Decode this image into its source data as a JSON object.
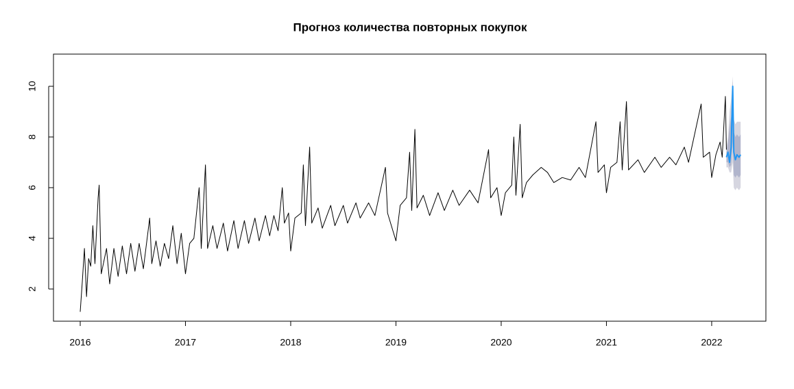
{
  "chart_data": {
    "type": "line",
    "title": "Прогноз количества повторных покупок",
    "xlim": [
      2015.746,
      2022.515
    ],
    "ylim": [
      0.73,
      11.27
    ],
    "xticks": [
      2016,
      2017,
      2018,
      2019,
      2020,
      2021,
      2022
    ],
    "yticks": [
      2,
      4,
      6,
      8,
      10
    ],
    "series": [
      {
        "color": "#000000",
        "x": [
          2016.0,
          2016.02,
          2016.04,
          2016.06,
          2016.08,
          2016.1,
          2016.12,
          2016.14,
          2016.17,
          2016.18,
          2016.2,
          2016.25,
          2016.28,
          2016.32,
          2016.36,
          2016.4,
          2016.44,
          2016.48,
          2016.52,
          2016.56,
          2016.6,
          2016.66,
          2016.68,
          2016.72,
          2016.76,
          2016.8,
          2016.84,
          2016.88,
          2016.92,
          2016.96,
          2017.0,
          2017.04,
          2017.08,
          2017.13,
          2017.15,
          2017.19,
          2017.21,
          2017.26,
          2017.3,
          2017.36,
          2017.4,
          2017.46,
          2017.5,
          2017.56,
          2017.6,
          2017.66,
          2017.7,
          2017.76,
          2017.8,
          2017.84,
          2017.88,
          2017.92,
          2017.94,
          2017.98,
          2018.0,
          2018.04,
          2018.1,
          2018.12,
          2018.14,
          2018.18,
          2018.2,
          2018.26,
          2018.3,
          2018.38,
          2018.42,
          2018.5,
          2018.54,
          2018.62,
          2018.66,
          2018.74,
          2018.8,
          2018.9,
          2018.92,
          2019.0,
          2019.04,
          2019.1,
          2019.13,
          2019.15,
          2019.18,
          2019.2,
          2019.26,
          2019.32,
          2019.4,
          2019.46,
          2019.54,
          2019.6,
          2019.7,
          2019.78,
          2019.88,
          2019.9,
          2019.96,
          2020.0,
          2020.04,
          2020.1,
          2020.12,
          2020.14,
          2020.18,
          2020.2,
          2020.24,
          2020.3,
          2020.38,
          2020.44,
          2020.5,
          2020.58,
          2020.66,
          2020.74,
          2020.8,
          2020.9,
          2020.92,
          2020.98,
          2021.0,
          2021.04,
          2021.1,
          2021.13,
          2021.15,
          2021.19,
          2021.21,
          2021.3,
          2021.36,
          2021.46,
          2021.52,
          2021.6,
          2021.66,
          2021.74,
          2021.78,
          2021.9,
          2021.92,
          2021.98,
          2022.0,
          2022.04,
          2022.08,
          2022.1,
          2022.13,
          2022.14
        ],
        "values": [
          1.1,
          2.3,
          3.6,
          1.7,
          3.2,
          2.9,
          4.5,
          3.0,
          5.6,
          6.1,
          2.6,
          3.6,
          2.2,
          3.6,
          2.5,
          3.7,
          2.6,
          3.8,
          2.7,
          3.8,
          2.8,
          4.8,
          3.0,
          3.9,
          2.9,
          3.8,
          3.2,
          4.5,
          3.0,
          4.2,
          2.6,
          3.8,
          4.0,
          6.0,
          3.6,
          6.9,
          3.6,
          4.5,
          3.6,
          4.6,
          3.5,
          4.7,
          3.6,
          4.7,
          3.8,
          4.8,
          3.9,
          4.9,
          4.1,
          4.9,
          4.3,
          6.0,
          4.6,
          5.0,
          3.5,
          4.8,
          5.0,
          6.9,
          4.5,
          7.6,
          4.6,
          5.2,
          4.4,
          5.3,
          4.5,
          5.3,
          4.6,
          5.4,
          4.8,
          5.4,
          4.9,
          6.8,
          5.0,
          3.9,
          5.3,
          5.6,
          7.4,
          5.1,
          8.3,
          5.2,
          5.7,
          4.9,
          5.8,
          5.1,
          5.9,
          5.3,
          5.9,
          5.4,
          7.5,
          5.6,
          6.0,
          4.9,
          5.8,
          6.1,
          8.0,
          5.7,
          8.5,
          5.6,
          6.2,
          6.5,
          6.8,
          6.6,
          6.2,
          6.4,
          6.3,
          6.8,
          6.4,
          8.6,
          6.6,
          6.9,
          5.8,
          6.8,
          7.0,
          8.6,
          6.7,
          9.4,
          6.7,
          7.1,
          6.6,
          7.2,
          6.8,
          7.2,
          6.9,
          7.6,
          7.0,
          9.3,
          7.2,
          7.4,
          6.4,
          7.3,
          7.8,
          7.2,
          9.6,
          7.5
        ]
      },
      {
        "color": "#2196f3",
        "x": [
          2022.14,
          2022.155,
          2022.17,
          2022.185,
          2022.2,
          2022.21,
          2022.225,
          2022.24,
          2022.26,
          2022.275
        ],
        "values": [
          7.2,
          7.4,
          7.0,
          7.6,
          10.0,
          7.4,
          7.1,
          7.3,
          7.2,
          7.3
        ]
      }
    ],
    "bands": [
      {
        "color": "#d6d6e0",
        "x": [
          2022.14,
          2022.155,
          2022.17,
          2022.185,
          2022.2,
          2022.21,
          2022.225,
          2022.24,
          2022.26,
          2022.275
        ],
        "lower": [
          6.8,
          6.8,
          6.6,
          6.6,
          7.0,
          6.0,
          5.9,
          6.0,
          5.9,
          6.0
        ],
        "upper": [
          7.6,
          8.0,
          9.0,
          9.5,
          10.4,
          8.7,
          8.5,
          8.6,
          8.6,
          8.6
        ]
      },
      {
        "color": "#b1b5cc",
        "x": [
          2022.14,
          2022.155,
          2022.17,
          2022.185,
          2022.2,
          2022.21,
          2022.225,
          2022.24,
          2022.26,
          2022.275
        ],
        "lower": [
          7.0,
          7.0,
          6.8,
          6.9,
          7.8,
          6.5,
          6.4,
          6.5,
          6.4,
          6.5
        ],
        "upper": [
          7.4,
          7.8,
          8.4,
          8.8,
          10.2,
          8.2,
          8.0,
          8.1,
          8.0,
          8.1
        ]
      }
    ]
  }
}
